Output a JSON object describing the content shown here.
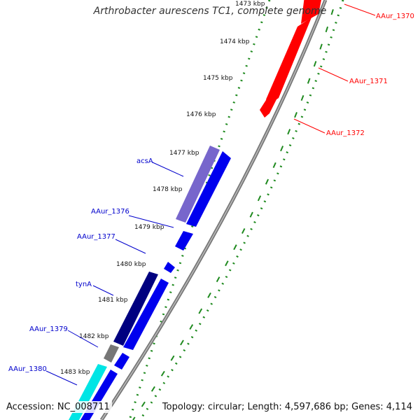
{
  "title": "Arthrobacter aurescens TC1, complete genome",
  "footer": {
    "accession": "Accession: NC_008711",
    "topology": "Topology: circular; Length: 4,597,686 bp; Genes: 4,114"
  },
  "ticks": [
    "1473 kbp",
    "1474 kbp",
    "1475 kbp",
    "1476 kbp",
    "1477 kbp",
    "1478 kbp",
    "1479 kbp",
    "1480 kbp",
    "1481 kbp",
    "1482 kbp",
    "1483 kbp"
  ],
  "genes": [
    {
      "name": "AAur_1370",
      "strand": "forward",
      "color": "#ff0000"
    },
    {
      "name": "AAur_1371",
      "strand": "forward",
      "color": "#ff0000"
    },
    {
      "name": "AAur_1372",
      "strand": "forward",
      "color": "#ff0000"
    },
    {
      "name": "acsA",
      "strand": "reverse",
      "color": "#7766cc"
    },
    {
      "name": "AAur_1376",
      "strand": "reverse",
      "color": "#0000ee"
    },
    {
      "name": "AAur_1377",
      "strand": "reverse",
      "color": "#0000ee"
    },
    {
      "name": "tynA",
      "strand": "reverse",
      "color": "#000080"
    },
    {
      "name": "AAur_1379",
      "strand": "reverse",
      "color": "#777777"
    },
    {
      "name": "AAur_1380",
      "strand": "reverse",
      "color": "#00e5e5"
    }
  ],
  "colors": {
    "forward_label": "#ff0000",
    "reverse_label": "#0000cc",
    "backbone": "#888888",
    "dots": "#1f8a1f"
  }
}
